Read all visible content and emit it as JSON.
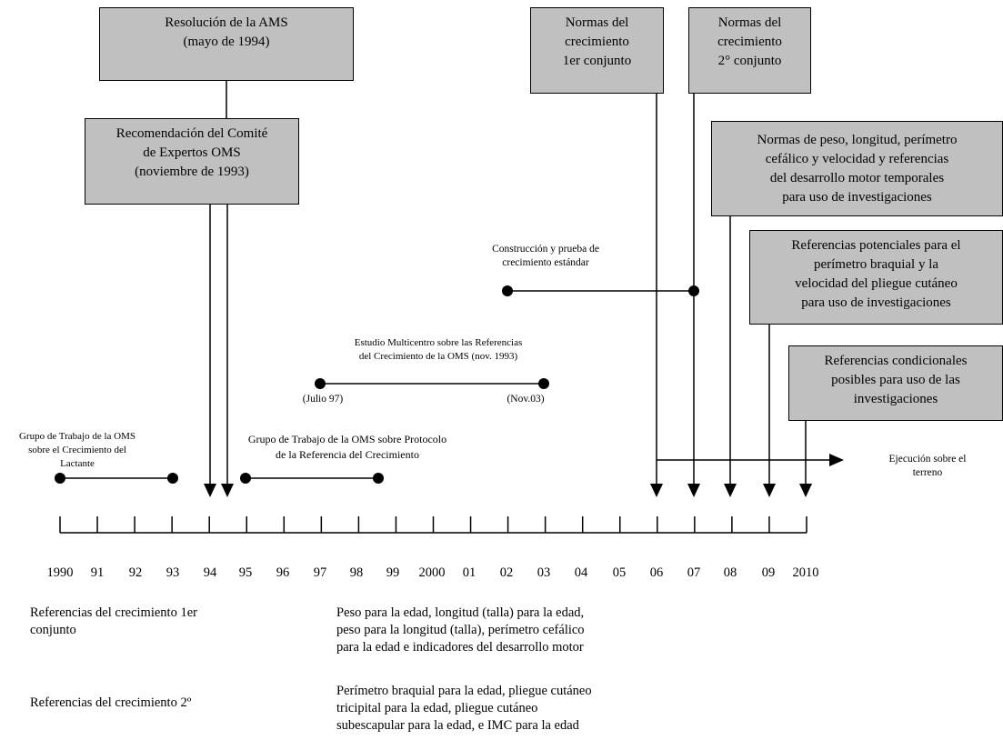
{
  "boxes": {
    "ams": [
      "Resolución de la AMS",
      "(mayo de 1994)"
    ],
    "comite": [
      "Recomendación del Comité",
      "de Expertos OMS",
      "(noviembre de 1993)"
    ],
    "normas1": [
      "Normas del",
      "crecimiento",
      "1er conjunto"
    ],
    "normas2": [
      "Normas del",
      "crecimiento",
      "2° conjunto"
    ],
    "peso": [
      "Normas de peso, longitud, perímetro",
      "cefálico y velocidad y referencias",
      "del desarrollo motor temporales",
      "para uso de investigaciones"
    ],
    "potenciales": [
      "Referencias potenciales para el",
      "perímetro braquial y la",
      "velocidad del pliegue cutáneo",
      "para uso de investigaciones"
    ],
    "condicionales": [
      "Referencias condicionales",
      "posibles para uso de las",
      "investigaciones"
    ]
  },
  "labels": {
    "construccion": [
      "Construcción y prueba de",
      "crecimiento estándar"
    ],
    "multicentro": [
      "Estudio Multicentro sobre las Referencias",
      "del Crecimiento de la OMS (nov. 1993)"
    ],
    "julio": "(Julio 97)",
    "nov": "(Nov.03)",
    "lactante": [
      "Grupo de Trabajo de la OMS",
      "sobre el Crecimiento del",
      "Lactante"
    ],
    "protocolo": [
      "Grupo de Trabajo de la OMS sobre Protocolo",
      "de la Referencia del Crecimiento"
    ],
    "ejecucion": [
      "Ejecución sobre el",
      "terreno"
    ]
  },
  "years": [
    "1990",
    "91",
    "92",
    "93",
    "94",
    "95",
    "96",
    "97",
    "98",
    "99",
    "2000",
    "01",
    "02",
    "03",
    "04",
    "05",
    "06",
    "07",
    "08",
    "09",
    "2010"
  ],
  "notes": {
    "ref1_title": [
      "Referencias del crecimiento 1er",
      "conjunto"
    ],
    "ref1_body": [
      "Peso para la edad, longitud (talla) para la edad,",
      "peso para la longitud (talla), perímetro cefálico",
      "para la edad e indicadores del desarrollo motor"
    ],
    "ref2_title": [
      "Referencias del crecimiento 2º"
    ],
    "ref2_body": [
      "Perímetro braquial para la edad, pliegue cutáneo",
      "tricipital para la edad, pliegue cutáneo",
      "subescapular para la edad, e IMC para la edad"
    ]
  },
  "colors": {
    "box_fill": "#c0c0c0",
    "line": "#000000"
  }
}
